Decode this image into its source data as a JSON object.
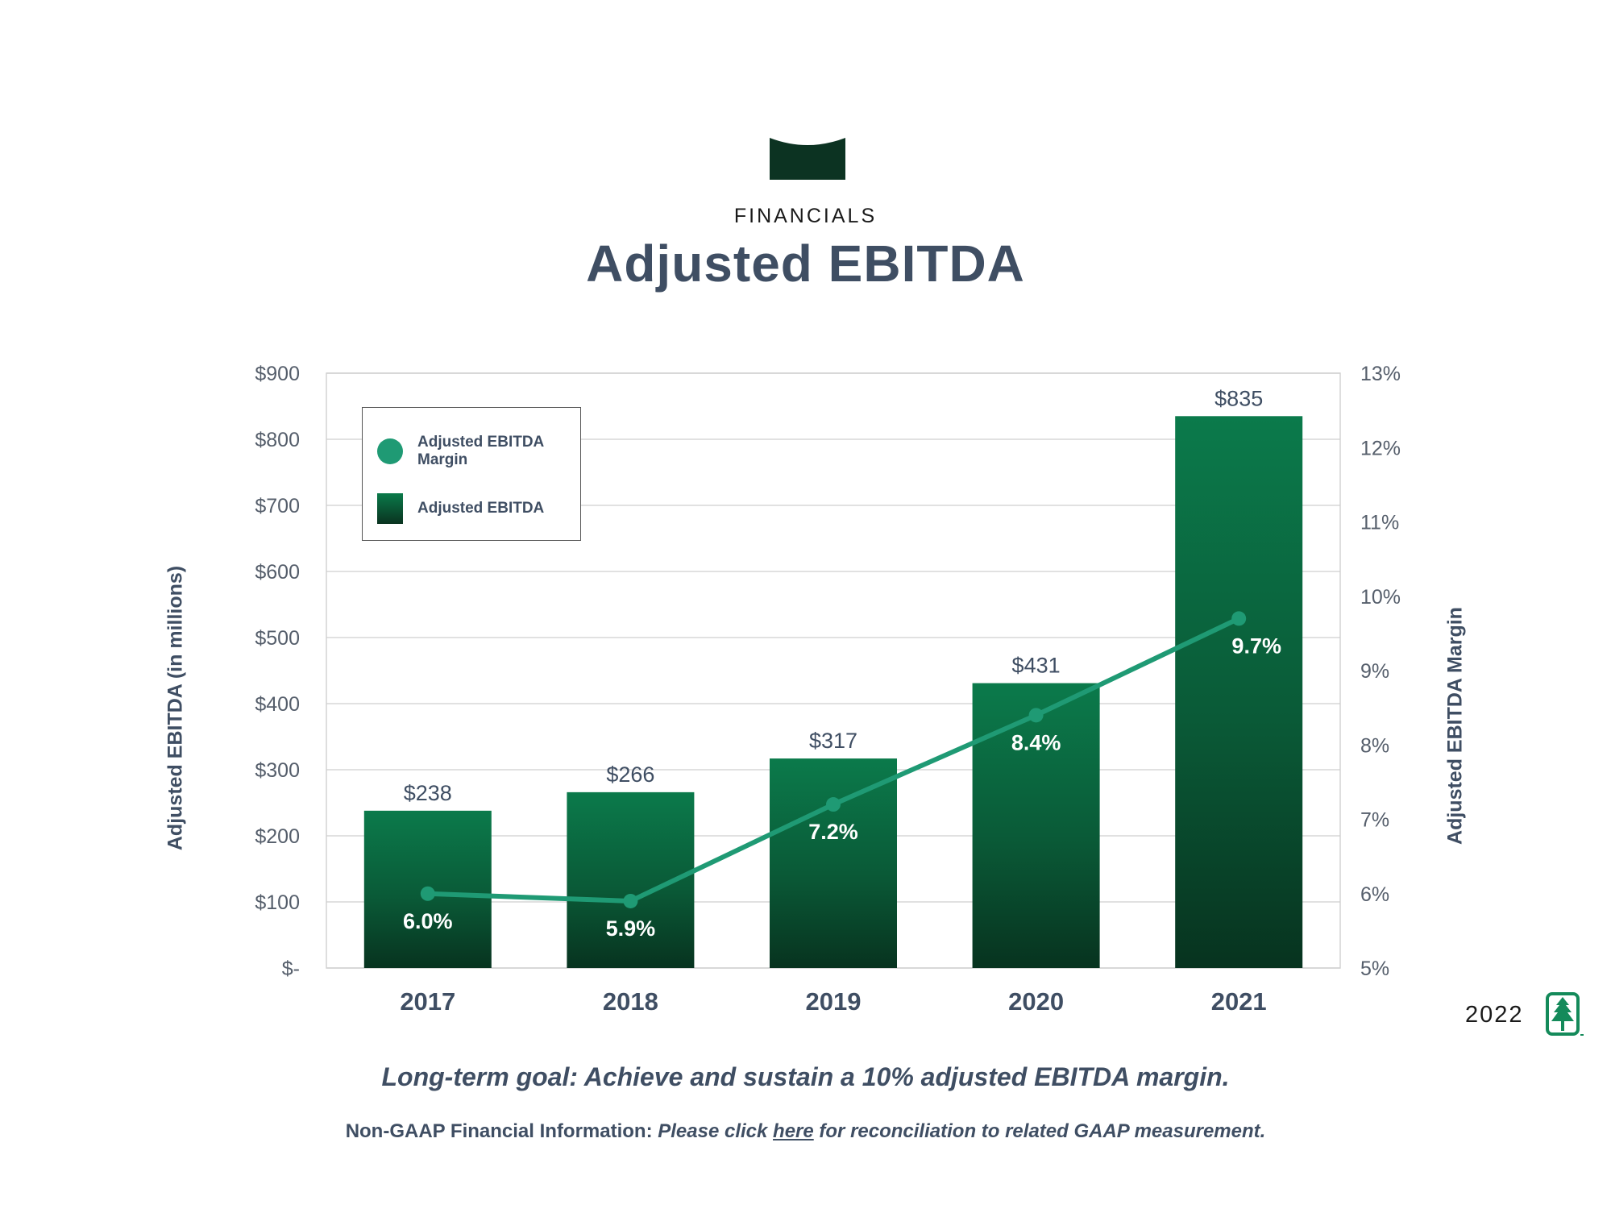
{
  "header": {
    "section": "FINANCIALS",
    "title": "Adjusted EBITDA"
  },
  "colors": {
    "bar_top": "#0b7a4b",
    "bar_bottom": "#07331f",
    "line": "#1f9a74",
    "text": "#3f4e63",
    "grid": "#cfcfcf",
    "logo": "#0c3322"
  },
  "chart_data": {
    "type": "bar",
    "title": "Adjusted EBITDA",
    "categories": [
      "2017",
      "2018",
      "2019",
      "2020",
      "2021"
    ],
    "series": [
      {
        "name": "Adjusted EBITDA",
        "type": "bar",
        "axis": "left",
        "values": [
          238,
          266,
          317,
          431,
          835
        ],
        "labels": [
          "$238",
          "$266",
          "$317",
          "$431",
          "$835"
        ]
      },
      {
        "name": "Adjusted EBITDA Margin",
        "type": "line",
        "axis": "right",
        "values": [
          6.0,
          5.9,
          7.2,
          8.4,
          9.7
        ],
        "labels": [
          "6.0%",
          "5.9%",
          "7.2%",
          "8.4%",
          "9.7%"
        ]
      }
    ],
    "ylabel": "Adjusted EBITDA  (in millions)",
    "ylabel_right": "Adjusted EBITDA Margin",
    "ylim": [
      0,
      900
    ],
    "ylim_right": [
      5,
      13
    ],
    "left_ticks": [
      "$-",
      "$100",
      "$200",
      "$300",
      "$400",
      "$500",
      "$600",
      "$700",
      "$800",
      "$900"
    ],
    "right_ticks": [
      "5%",
      "6%",
      "7%",
      "8%",
      "9%",
      "10%",
      "11%",
      "12%",
      "13%"
    ],
    "grid": true,
    "legend": {
      "position": "top-left",
      "margin_label": "Adjusted EBITDA Margin",
      "bar_label": "Adjusted EBITDA"
    }
  },
  "footer": {
    "goal": "Long-term goal: Achieve and sustain a 10% adjusted EBITDA margin.",
    "note_prefix": "Non-GAAP Financial Information: ",
    "note_click": "Please click ",
    "note_link": "here",
    "note_suffix": " for reconciliation to related GAAP measurement.",
    "year": "2022"
  }
}
